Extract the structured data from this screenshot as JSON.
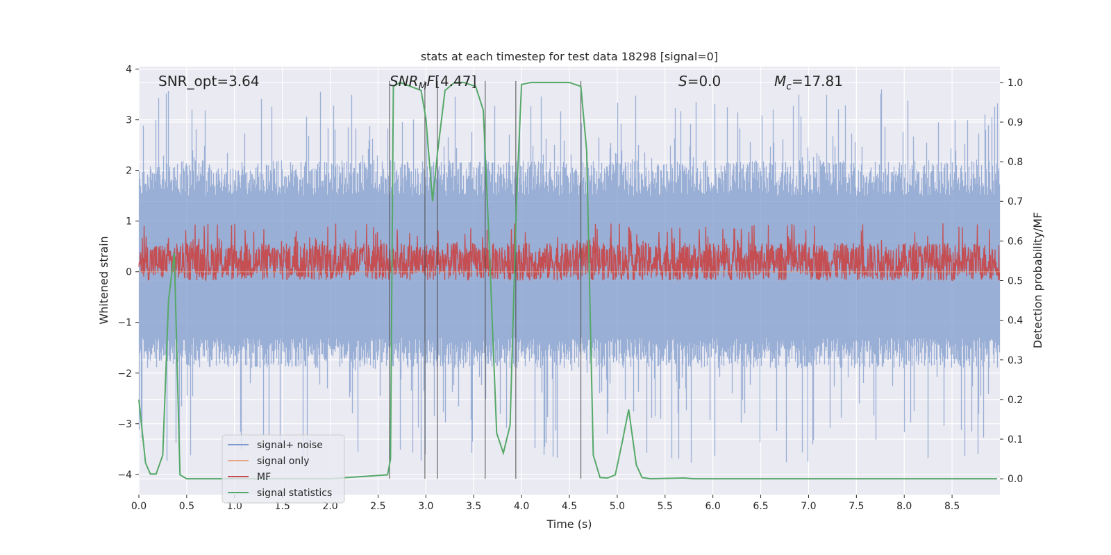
{
  "chart_data": {
    "type": "line",
    "title": "stats at each timestep for test data 18298 [signal=0]",
    "xlabel": "Time (s)",
    "ylabel_left": "Whitened strain",
    "ylabel_right": "Detection probability/MF",
    "xlim": [
      0.0,
      9.0
    ],
    "ylim_left": [
      -4.4,
      4.05
    ],
    "ylim_right": [
      -0.04,
      1.04
    ],
    "x_ticks": [
      "0.0",
      "0.5",
      "1.0",
      "1.5",
      "2.0",
      "2.5",
      "3.0",
      "3.5",
      "4.0",
      "4.5",
      "5.0",
      "5.5",
      "6.0",
      "6.5",
      "7.0",
      "7.5",
      "8.0",
      "8.5"
    ],
    "y_left_ticks": [
      "4",
      "3",
      "2",
      "1",
      "0",
      "−1",
      "−2",
      "−3",
      "−4"
    ],
    "y_right_ticks": [
      "1.0",
      "0.9",
      "0.8",
      "0.7",
      "0.6",
      "0.5",
      "0.4",
      "0.3",
      "0.2",
      "0.1",
      "0.0"
    ],
    "grid": true,
    "legend_position": "lower-left",
    "annotations": {
      "snr_opt": "SNR_opt=3.64",
      "snr_mf": "[4.47]",
      "s_value": "=0.0",
      "mc_value": "=17.81"
    },
    "series": [
      {
        "name": "signal+ noise",
        "color": "#7f9bcb",
        "axis": "left",
        "kind": "noise",
        "envelope": {
          "upper_typical": 2.0,
          "upper_peak": 3.6,
          "lower_typical": -1.8,
          "lower_peak": -4.0
        }
      },
      {
        "name": "signal only",
        "color": "#e8a78a",
        "axis": "left",
        "kind": "flat",
        "value": 0.0
      },
      {
        "name": "MF",
        "color": "#c44e52",
        "axis": "right",
        "kind": "noise",
        "envelope": {
          "baseline": 0.5,
          "upper_typical": 0.595,
          "upper_peak": 0.645,
          "lower_peak": 0.49
        }
      },
      {
        "name": "signal statistics",
        "color": "#55a868",
        "axis": "right",
        "kind": "line",
        "x": [
          0.0,
          0.07,
          0.12,
          0.18,
          0.25,
          0.31,
          0.37,
          0.43,
          0.5,
          1.0,
          2.0,
          2.6,
          2.63,
          2.66,
          2.73,
          2.95,
          3.0,
          3.07,
          3.12,
          3.2,
          3.3,
          3.4,
          3.52,
          3.6,
          3.66,
          3.74,
          3.81,
          3.88,
          3.95,
          4.0,
          4.1,
          4.3,
          4.5,
          4.62,
          4.68,
          4.75,
          4.82,
          4.9,
          4.98,
          5.05,
          5.12,
          5.2,
          5.26,
          5.35,
          5.7,
          5.8,
          7.0,
          8.97
        ],
        "y": [
          0.2,
          0.04,
          0.012,
          0.012,
          0.06,
          0.45,
          0.57,
          0.01,
          0.0,
          0.0,
          0.0,
          0.01,
          0.05,
          0.99,
          1.0,
          0.98,
          0.91,
          0.7,
          0.82,
          0.98,
          1.0,
          1.0,
          0.99,
          0.93,
          0.6,
          0.115,
          0.065,
          0.135,
          0.72,
          0.995,
          1.0,
          1.0,
          1.0,
          0.99,
          0.83,
          0.06,
          0.003,
          0.002,
          0.01,
          0.09,
          0.175,
          0.035,
          0.003,
          0.0,
          0.002,
          0.0,
          0.0,
          0.0
        ]
      }
    ],
    "vertical_lines_x": [
      2.62,
      2.99,
      3.12,
      3.62,
      3.94,
      4.62
    ]
  }
}
